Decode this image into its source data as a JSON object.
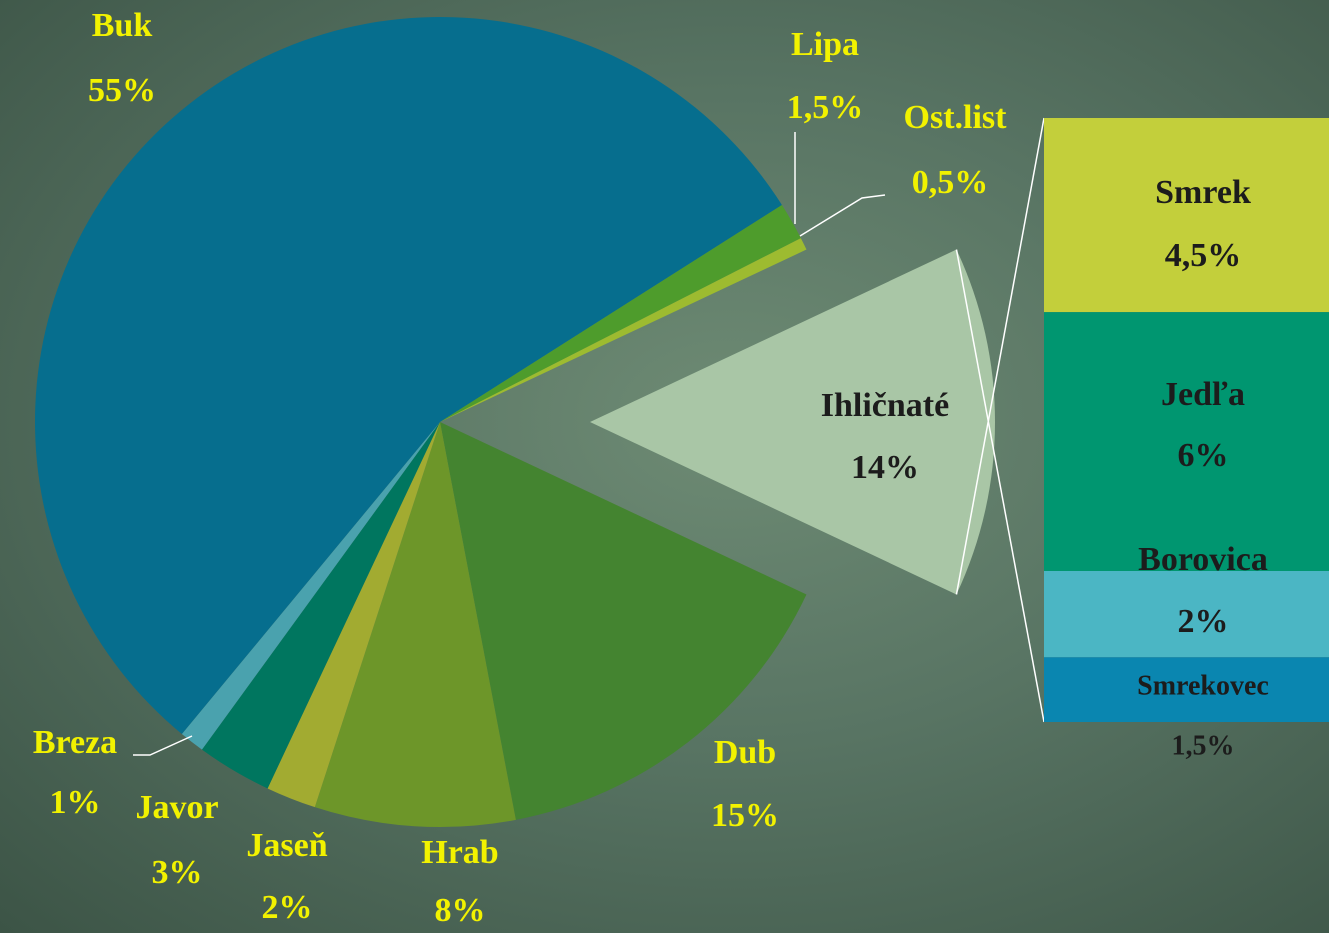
{
  "chart_data": {
    "type": "bar_of_pie",
    "categories": [
      "Dub",
      "Hrab",
      "Jaseň",
      "Javor",
      "Breza",
      "Buk",
      "Lipa",
      "Ost.list",
      "Ihličnaté"
    ],
    "values": [
      15,
      8,
      2,
      3,
      1,
      55,
      1.5,
      0.5,
      14
    ],
    "value_labels": [
      "15%",
      "8%",
      "2%",
      "3%",
      "1%",
      "55%",
      "1,5%",
      "0,5%",
      "14%"
    ],
    "colors": [
      "#448430",
      "#6d9629",
      "#a2ab31",
      "#00765f",
      "#4aa2ae",
      "#066e8e",
      "#4e9c2c",
      "#9dbb30",
      "#a9c6a6"
    ],
    "bar": {
      "categories": [
        "Smrek",
        "Jedľa",
        "Borovica",
        "Smrekovec"
      ],
      "values": [
        4.5,
        6,
        2,
        1.5
      ],
      "value_labels": [
        "4,5%",
        "6%",
        "2%",
        "1,5%"
      ],
      "colors": [
        "#c3cf3b",
        "#009670",
        "#4bb6c4",
        "#0a86b0"
      ]
    }
  }
}
